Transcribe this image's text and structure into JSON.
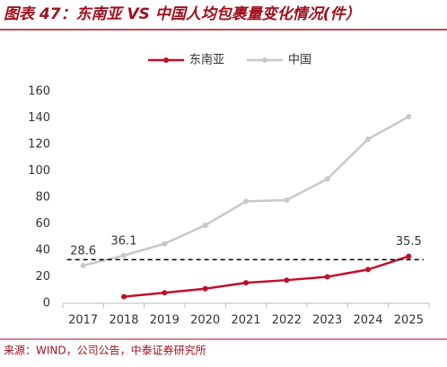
{
  "header": {
    "title": "图表 47：东南亚 VS 中国人均包裹量变化情况(件）"
  },
  "chart_data": {
    "type": "line",
    "categories": [
      "2017",
      "2018",
      "2019",
      "2020",
      "2021",
      "2022",
      "2023",
      "2024",
      "2025"
    ],
    "series": [
      {
        "name": "东南亚",
        "color": "#c0102a",
        "values": [
          null,
          5,
          8,
          11,
          15.5,
          17.5,
          20,
          25.5,
          35.5
        ],
        "value_labels": [
          null,
          null,
          null,
          null,
          null,
          null,
          null,
          null,
          "35.5"
        ]
      },
      {
        "name": "中国",
        "color": "#c8c8c8",
        "values": [
          28.6,
          36.1,
          45,
          59,
          77,
          78,
          94,
          124,
          141
        ],
        "value_labels": [
          "28.6",
          "36.1",
          null,
          null,
          null,
          null,
          null,
          null,
          null
        ]
      }
    ],
    "reference_line": 33,
    "ylim": [
      0,
      160
    ],
    "yticks": [
      0,
      20,
      40,
      60,
      80,
      100,
      120,
      140,
      160
    ],
    "legend": "top"
  },
  "footer": {
    "source": "来源：WIND，公司公告，中泰证券研究所"
  }
}
